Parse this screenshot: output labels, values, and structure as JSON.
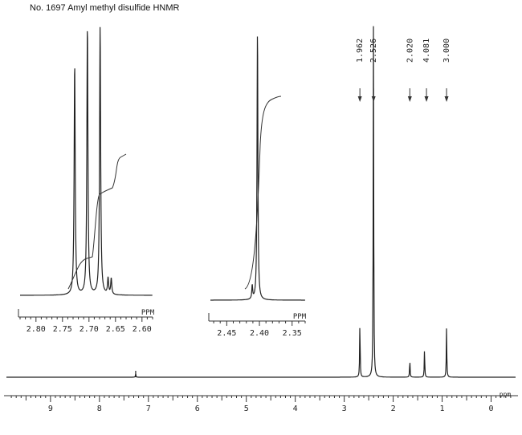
{
  "title": "No. 1697 Amyl methyl disulfide HNMR",
  "chart_data": {
    "type": "line",
    "title": "No. 1697 Amyl methyl disulfide HNMR",
    "main": {
      "xlabel": "ppm",
      "xlim": [
        9.9,
        -0.5
      ],
      "reversed": true,
      "tick_labels": [
        "9",
        "8",
        "7",
        "6",
        "5",
        "4",
        "3",
        "2",
        "1",
        "0"
      ],
      "peaks": [
        {
          "ppm": 2.68,
          "height": 0.16
        },
        {
          "ppm": 2.403,
          "height": 1.0
        },
        {
          "ppm": 1.66,
          "height": 0.05
        },
        {
          "ppm": 1.36,
          "height": 0.08
        },
        {
          "ppm": 0.91,
          "height": 0.14
        },
        {
          "ppm": 7.26,
          "height": 0.01
        }
      ],
      "integrals": [
        {
          "label": "1.962",
          "ppm": 2.68
        },
        {
          "label": "2.526",
          "ppm": 2.4
        },
        {
          "label": "2.020",
          "ppm": 1.66
        },
        {
          "label": "4.081",
          "ppm": 1.32
        },
        {
          "label": "3.000",
          "ppm": 0.91
        }
      ]
    },
    "inset1": {
      "xlabel": "PPM",
      "xlim": [
        2.83,
        2.58
      ],
      "tick_labels": [
        "2.80",
        "2.75",
        "2.70",
        "2.65",
        "2.60"
      ],
      "peaks": [
        {
          "ppm": 2.727,
          "height": 0.86
        },
        {
          "ppm": 2.703,
          "height": 1.0
        },
        {
          "ppm": 2.679,
          "height": 1.0
        },
        {
          "ppm": 2.664,
          "height": 0.06
        },
        {
          "ppm": 2.658,
          "height": 0.06
        }
      ]
    },
    "inset2": {
      "xlabel": "PPM",
      "xlim": [
        2.475,
        2.33
      ],
      "tick_labels": [
        "2.45",
        "2.40",
        "2.35"
      ],
      "peaks": [
        {
          "ppm": 2.403,
          "height": 1.0
        },
        {
          "ppm": 2.411,
          "height": 0.05
        }
      ]
    }
  }
}
